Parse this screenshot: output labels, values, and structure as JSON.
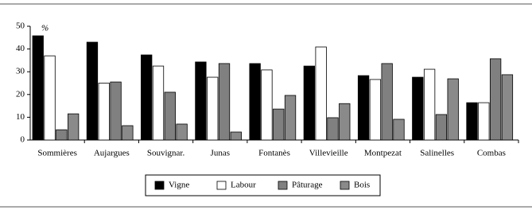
{
  "chart_data": {
    "type": "bar",
    "y_label": "%",
    "categories": [
      "Sommières",
      "Aujargues",
      "Souvignar.",
      "Junas",
      "Fontanès",
      "Villevieille",
      "Montpezat",
      "Salinelles",
      "Combas"
    ],
    "series": [
      {
        "name": "Vigne",
        "color": "#000000",
        "values": [
          45.8,
          43,
          37.4,
          34.3,
          33.6,
          32.5,
          28.3,
          27.6,
          16.4
        ]
      },
      {
        "name": "Labour",
        "color": "#ffffff",
        "values": [
          37,
          25,
          32.5,
          27.6,
          30.8,
          40.9,
          26.6,
          31.1,
          16.4
        ]
      },
      {
        "name": "Pâturage",
        "color": "#808080",
        "values": [
          4.5,
          25.5,
          21,
          33.6,
          13.6,
          9.8,
          33.6,
          11.2,
          35.7
        ]
      },
      {
        "name": "Bois",
        "color": "#8a8a8a",
        "values": [
          11.5,
          6.3,
          7,
          3.5,
          19.6,
          16,
          9.1,
          26.9,
          28.7
        ]
      }
    ],
    "ylim": [
      0,
      50
    ],
    "yticks": [
      0,
      10,
      20,
      30,
      40,
      50
    ],
    "grid": false
  }
}
